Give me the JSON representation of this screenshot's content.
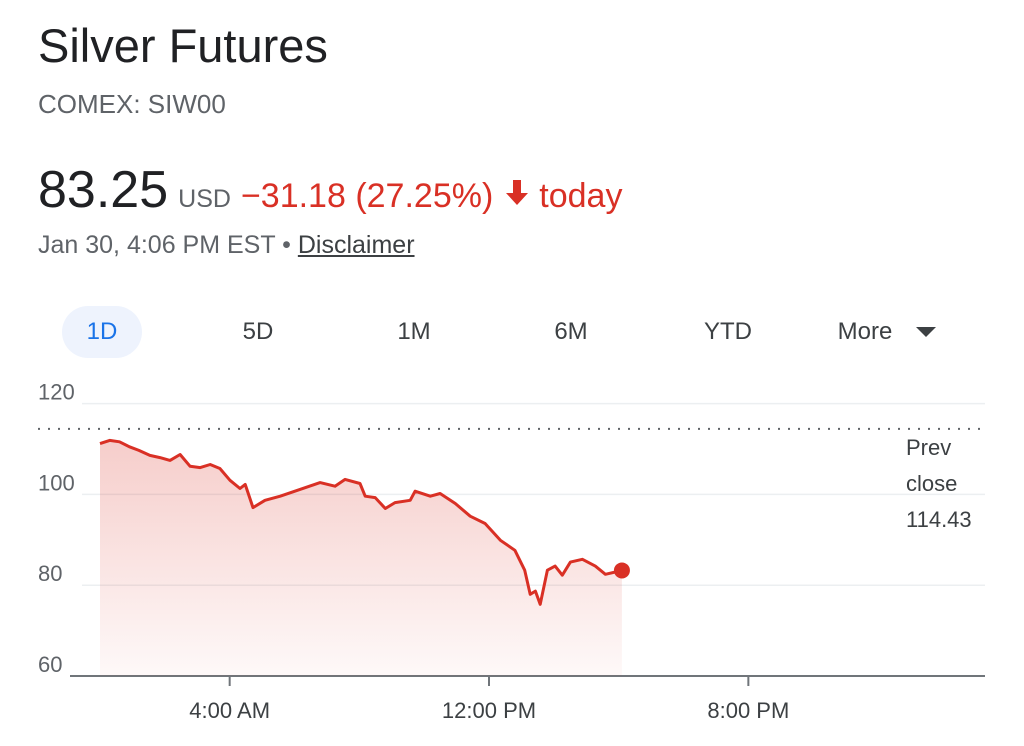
{
  "header": {
    "title": "Silver Futures",
    "subtitle": "COMEX: SIW00",
    "price": "83.25",
    "currency": "USD",
    "change": "−31.18 (27.25%)",
    "change_period": "today",
    "timestamp": "Jan 30, 4:06 PM EST",
    "separator": "•",
    "disclaimer": "Disclaimer"
  },
  "tabs": [
    "1D",
    "5D",
    "1M",
    "6M",
    "YTD",
    "More"
  ],
  "chart_data": {
    "type": "area-line",
    "color": "#d93025",
    "x": [
      0,
      0.3,
      0.6,
      0.9,
      1.2,
      1.54,
      1.85,
      2.16,
      2.47,
      2.78,
      3.09,
      3.4,
      3.7,
      4.01,
      4.32,
      4.48,
      4.72,
      5.09,
      5.56,
      6.17,
      6.79,
      7.25,
      7.56,
      8.02,
      8.18,
      8.49,
      8.8,
      9.1,
      9.57,
      9.72,
      10.19,
      10.49,
      10.96,
      11.42,
      11.88,
      12.35,
      12.8,
      13.1,
      13.27,
      13.43,
      13.58,
      13.8,
      14.04,
      14.26,
      14.51,
      14.88,
      15.28,
      15.59,
      16.1
    ],
    "values": [
      111.2,
      111.9,
      111.6,
      110.5,
      109.7,
      108.6,
      108.1,
      107.5,
      108.8,
      106.2,
      105.9,
      106.6,
      105.7,
      103.1,
      101.3,
      102.2,
      97.1,
      98.7,
      99.6,
      101.1,
      102.6,
      101.8,
      103.3,
      102.4,
      99.6,
      99.3,
      96.9,
      98.2,
      98.7,
      100.7,
      99.6,
      100.2,
      98.0,
      95.2,
      93.6,
      89.9,
      87.7,
      83.3,
      78.0,
      78.7,
      75.8,
      83.3,
      84.2,
      82.2,
      85.1,
      85.7,
      84.2,
      82.4,
      83.25
    ],
    "xlim": [
      0,
      27.3
    ],
    "xticks": [
      {
        "value": 4,
        "label": "4:00 AM"
      },
      {
        "value": 12,
        "label": "12:00 PM"
      },
      {
        "value": 20,
        "label": "8:00 PM"
      }
    ],
    "ylim": [
      60,
      123
    ],
    "yticks": [
      60,
      80,
      100,
      120
    ],
    "grid": true,
    "prev_close": 114.43,
    "prev_close_label": "Prev close"
  }
}
